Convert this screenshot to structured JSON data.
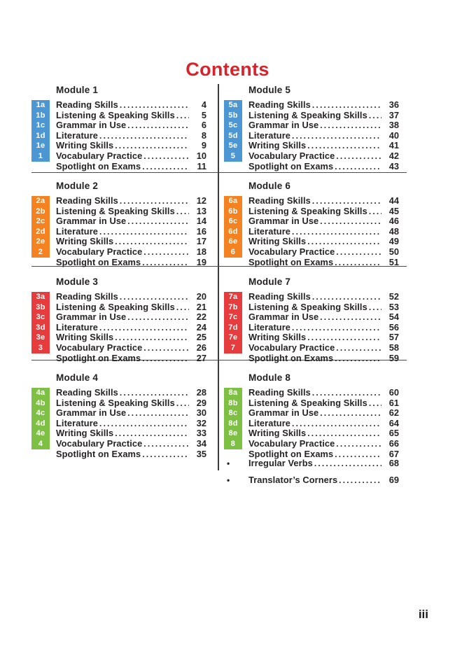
{
  "title": "Contents",
  "page_marker": "iii",
  "colors": {
    "title_red": "#d7232b",
    "text": "#262626",
    "badge_blue": "#4d96d4",
    "badge_orange": "#f58220",
    "badge_red": "#e73c3e",
    "badge_green": "#7ec043"
  },
  "modules": [
    {
      "heading": "Module 1",
      "column": "left",
      "badge_color": "badge_blue",
      "rows": [
        {
          "badge": "1a",
          "label": "Reading Skills",
          "page": "4"
        },
        {
          "badge": "1b",
          "label": "Listening & Speaking Skills",
          "page": "5"
        },
        {
          "badge": "1c",
          "label": "Grammar in Use",
          "page": "6"
        },
        {
          "badge": "1d",
          "label": "Literature",
          "page": "8"
        },
        {
          "badge": "1e",
          "label": "Writing Skills",
          "page": "9"
        },
        {
          "badge": "1",
          "label": "Vocabulary Practice",
          "page": "10"
        },
        {
          "badge": null,
          "label": "Spotlight on Exams",
          "page": "11"
        }
      ]
    },
    {
      "heading": "Module 2",
      "column": "left",
      "badge_color": "badge_orange",
      "rows": [
        {
          "badge": "2a",
          "label": "Reading Skills",
          "page": "12"
        },
        {
          "badge": "2b",
          "label": "Listening & Speaking Skills",
          "page": "13"
        },
        {
          "badge": "2c",
          "label": "Grammar in Use",
          "page": "14"
        },
        {
          "badge": "2d",
          "label": "Literature",
          "page": "16"
        },
        {
          "badge": "2e",
          "label": "Writing Skills",
          "page": "17"
        },
        {
          "badge": "2",
          "label": "Vocabulary Practice",
          "page": "18"
        },
        {
          "badge": null,
          "label": "Spotlight on Exams",
          "page": "19"
        }
      ]
    },
    {
      "heading": "Module 3",
      "column": "left",
      "badge_color": "badge_red",
      "rows": [
        {
          "badge": "3a",
          "label": "Reading Skills",
          "page": "20"
        },
        {
          "badge": "3b",
          "label": "Listening & Speaking Skills",
          "page": "21"
        },
        {
          "badge": "3c",
          "label": "Grammar in Use",
          "page": "22"
        },
        {
          "badge": "3d",
          "label": "Literature",
          "page": "24"
        },
        {
          "badge": "3e",
          "label": "Writing Skills",
          "page": "25"
        },
        {
          "badge": "3",
          "label": "Vocabulary Practice",
          "page": "26"
        },
        {
          "badge": null,
          "label": "Spotlight on Exams",
          "page": "27"
        }
      ]
    },
    {
      "heading": "Module 4",
      "column": "left",
      "badge_color": "badge_green",
      "rows": [
        {
          "badge": "4a",
          "label": "Reading Skills",
          "page": "28"
        },
        {
          "badge": "4b",
          "label": "Listening & Speaking Skills",
          "page": "29"
        },
        {
          "badge": "4c",
          "label": "Grammar in Use",
          "page": "30"
        },
        {
          "badge": "4d",
          "label": "Literature",
          "page": "32"
        },
        {
          "badge": "4e",
          "label": "Writing Skills",
          "page": "33"
        },
        {
          "badge": "4",
          "label": "Vocabulary Practice",
          "page": "34"
        },
        {
          "badge": null,
          "label": "Spotlight on Exams",
          "page": "35"
        }
      ]
    },
    {
      "heading": "Module 5",
      "column": "right",
      "badge_color": "badge_blue",
      "rows": [
        {
          "badge": "5a",
          "label": "Reading Skills",
          "page": "36"
        },
        {
          "badge": "5b",
          "label": "Listening & Speaking Skills",
          "page": "37"
        },
        {
          "badge": "5c",
          "label": "Grammar in Use",
          "page": "38"
        },
        {
          "badge": "5d",
          "label": "Literature",
          "page": "40"
        },
        {
          "badge": "5e",
          "label": "Writing Skills",
          "page": "41"
        },
        {
          "badge": "5",
          "label": "Vocabulary Practice",
          "page": "42"
        },
        {
          "badge": null,
          "label": "Spotlight on Exams",
          "page": "43"
        }
      ]
    },
    {
      "heading": "Module 6",
      "column": "right",
      "badge_color": "badge_orange",
      "rows": [
        {
          "badge": "6a",
          "label": "Reading Skills",
          "page": "44"
        },
        {
          "badge": "6b",
          "label": "Listening & Speaking Skills",
          "page": "45"
        },
        {
          "badge": "6c",
          "label": "Grammar in Use",
          "page": "46"
        },
        {
          "badge": "6d",
          "label": "Literature",
          "page": "48"
        },
        {
          "badge": "6e",
          "label": "Writing Skills",
          "page": "49"
        },
        {
          "badge": "6",
          "label": "Vocabulary Practice",
          "page": "50"
        },
        {
          "badge": null,
          "label": "Spotlight on Exams",
          "page": "51"
        }
      ]
    },
    {
      "heading": "Module 7",
      "column": "right",
      "badge_color": "badge_red",
      "rows": [
        {
          "badge": "7a",
          "label": "Reading Skills",
          "page": "52"
        },
        {
          "badge": "7b",
          "label": "Listening & Speaking Skills",
          "page": "53"
        },
        {
          "badge": "7c",
          "label": "Grammar in Use",
          "page": "54"
        },
        {
          "badge": "7d",
          "label": "Literature",
          "page": "56"
        },
        {
          "badge": "7e",
          "label": "Writing Skills",
          "page": "57"
        },
        {
          "badge": "7",
          "label": "Vocabulary Practice",
          "page": "58"
        },
        {
          "badge": null,
          "label": "Spotlight on Exams",
          "page": "59"
        }
      ]
    },
    {
      "heading": "Module 8",
      "column": "right",
      "badge_color": "badge_green",
      "rows": [
        {
          "badge": "8a",
          "label": "Reading Skills",
          "page": "60"
        },
        {
          "badge": "8b",
          "label": "Listening & Speaking Skills",
          "page": "61"
        },
        {
          "badge": "8c",
          "label": "Grammar in Use",
          "page": "62"
        },
        {
          "badge": "8d",
          "label": "Literature",
          "page": "64"
        },
        {
          "badge": "8e",
          "label": "Writing Skills",
          "page": "65"
        },
        {
          "badge": "8",
          "label": "Vocabulary Practice",
          "page": "66"
        },
        {
          "badge": null,
          "label": "Spotlight on Exams",
          "page": "67"
        }
      ]
    }
  ],
  "extras": [
    {
      "bullet": "•",
      "label": "Irregular Verbs",
      "page": "68"
    },
    {
      "bullet": "•",
      "label": "Translator’s Corners",
      "page": "69"
    }
  ]
}
